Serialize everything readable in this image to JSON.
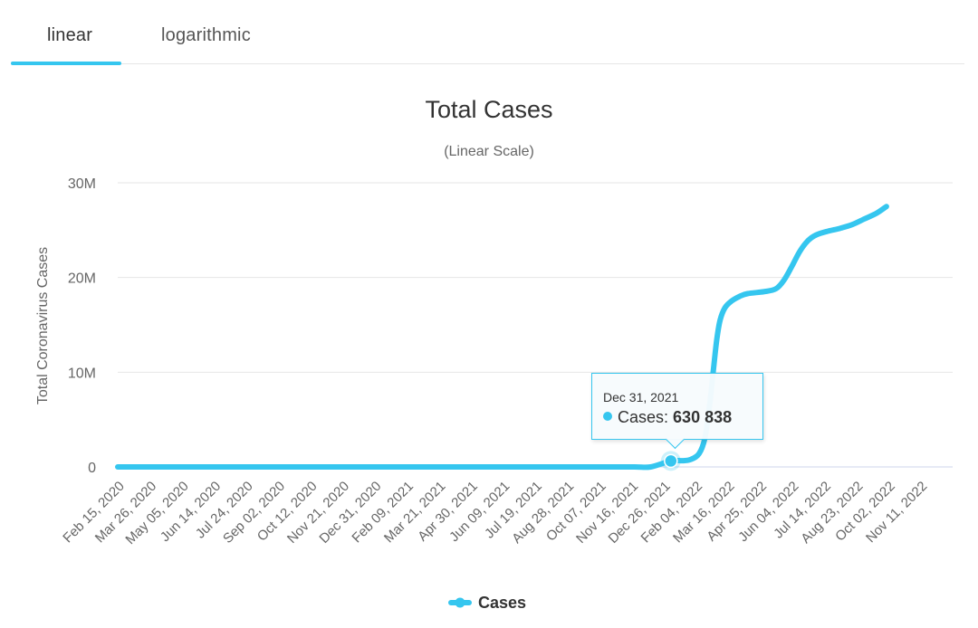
{
  "tabs": [
    {
      "label": "linear",
      "active": true
    },
    {
      "label": "logarithmic",
      "active": false
    }
  ],
  "accent_color": "#35c6ef",
  "tooltip": {
    "date": "Dec 31, 2021",
    "series": "Cases",
    "value_text": "630 838",
    "value": 630838
  },
  "chart_data": {
    "type": "line",
    "title": "Total Cases",
    "subtitle": "(Linear Scale)",
    "xlabel": "",
    "ylabel": "Total Coronavirus Cases",
    "ylim": [
      0,
      30000000
    ],
    "yticks": [
      {
        "value": 0,
        "label": "0"
      },
      {
        "value": 10000000,
        "label": "10M"
      },
      {
        "value": 20000000,
        "label": "20M"
      },
      {
        "value": 30000000,
        "label": "30M"
      }
    ],
    "x_tick_labels": [
      "Feb 15, 2020",
      "Mar 26, 2020",
      "May 05, 2020",
      "Jun 14, 2020",
      "Jul 24, 2020",
      "Sep 02, 2020",
      "Oct 12, 2020",
      "Nov 21, 2020",
      "Dec 31, 2020",
      "Feb 09, 2021",
      "Mar 21, 2021",
      "Apr 30, 2021",
      "Jun 09, 2021",
      "Jul 19, 2021",
      "Aug 28, 2021",
      "Oct 07, 2021",
      "Nov 16, 2021",
      "Dec 26, 2021",
      "Feb 04, 2022",
      "Mar 16, 2022",
      "Apr 25, 2022",
      "Jun 04, 2022",
      "Jul 14, 2022",
      "Aug 23, 2022",
      "Oct 02, 2022",
      "Nov 11, 2022"
    ],
    "x_start": "Feb 15, 2020",
    "x_end": "Dec 15, 2022",
    "x_day_range": [
      0,
      1034
    ],
    "grid": true,
    "legend": {
      "position": "bottom-center",
      "entries": [
        "Cases"
      ]
    },
    "series": [
      {
        "name": "Cases",
        "color": "#35c6ef",
        "points": [
          [
            0,
            60
          ],
          [
            40,
            85
          ],
          [
            80,
            90
          ],
          [
            120,
            90
          ],
          [
            160,
            95
          ],
          [
            200,
            100
          ],
          [
            240,
            110
          ],
          [
            280,
            130
          ],
          [
            320,
            150
          ],
          [
            360,
            160
          ],
          [
            400,
            170
          ],
          [
            440,
            180
          ],
          [
            480,
            200
          ],
          [
            520,
            230
          ],
          [
            560,
            300
          ],
          [
            600,
            400
          ],
          [
            640,
            500
          ],
          [
            660,
            560
          ],
          [
            685,
            630838
          ],
          [
            700,
            660000
          ],
          [
            710,
            800000
          ],
          [
            720,
            1400000
          ],
          [
            727,
            3000000
          ],
          [
            733,
            6500000
          ],
          [
            738,
            10500000
          ],
          [
            742,
            13500000
          ],
          [
            746,
            15500000
          ],
          [
            752,
            16800000
          ],
          [
            760,
            17500000
          ],
          [
            770,
            18000000
          ],
          [
            780,
            18300000
          ],
          [
            800,
            18500000
          ],
          [
            815,
            18800000
          ],
          [
            825,
            19700000
          ],
          [
            835,
            21200000
          ],
          [
            845,
            22800000
          ],
          [
            855,
            23900000
          ],
          [
            865,
            24500000
          ],
          [
            880,
            24900000
          ],
          [
            895,
            25200000
          ],
          [
            910,
            25600000
          ],
          [
            925,
            26200000
          ],
          [
            940,
            26800000
          ],
          [
            952,
            27500000
          ]
        ]
      }
    ],
    "highlight": {
      "day": 685,
      "value": 630838,
      "date": "Dec 31, 2021"
    }
  }
}
